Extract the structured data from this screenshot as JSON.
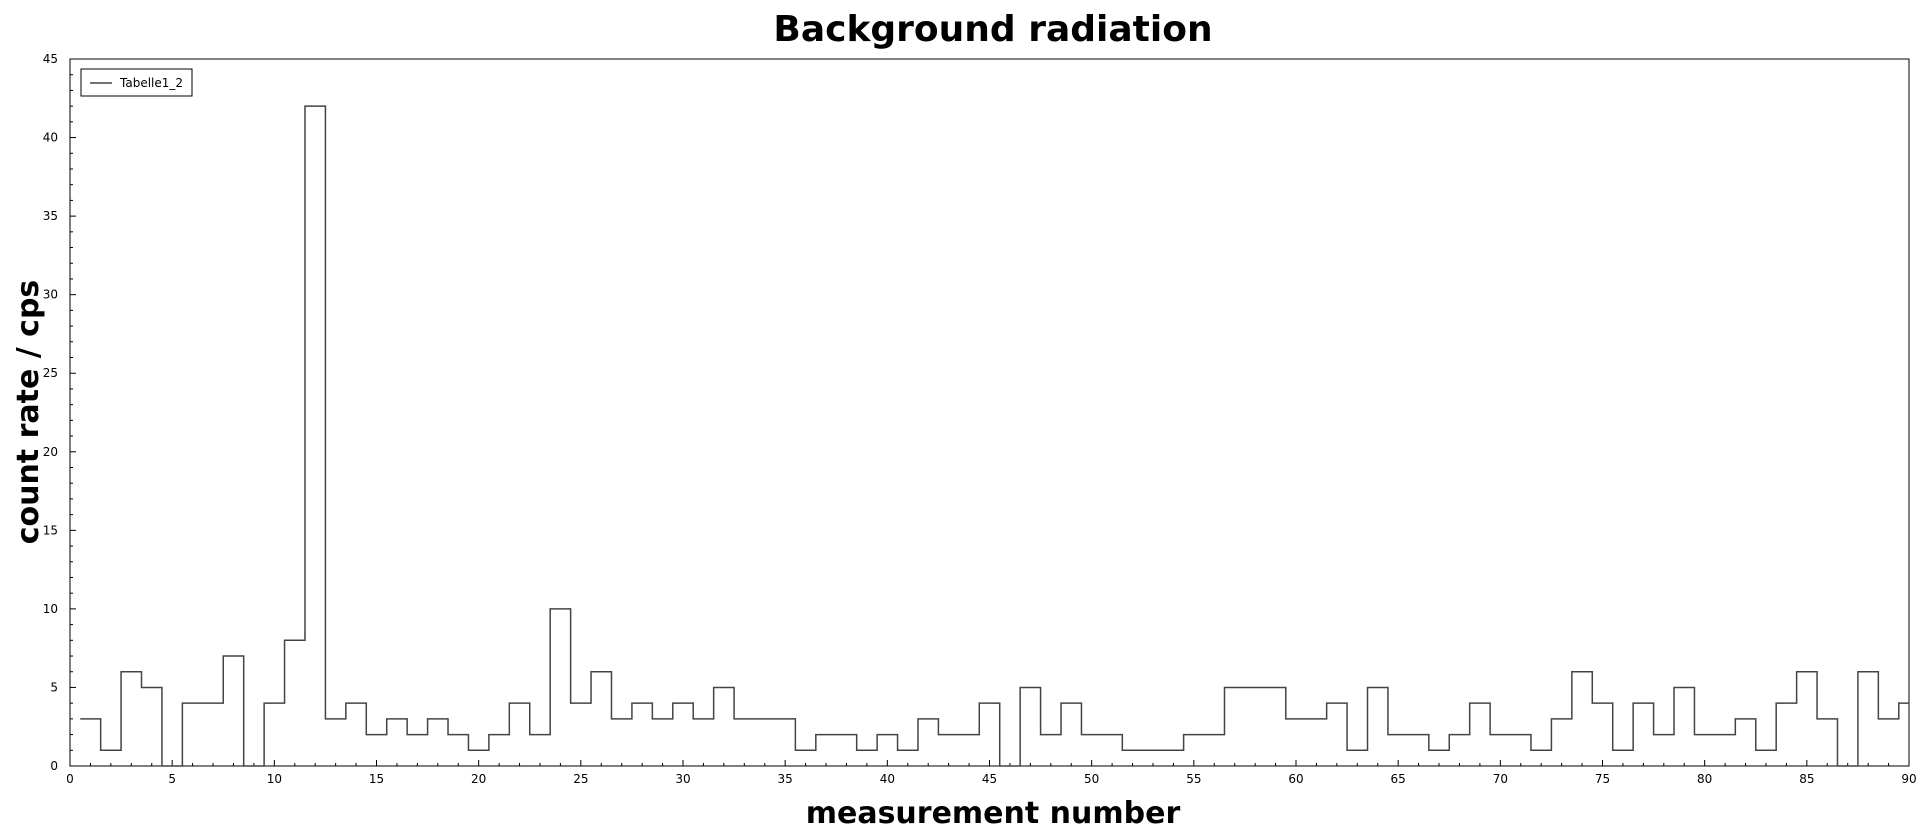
{
  "chart_data": {
    "type": "line",
    "step": true,
    "title": "Background radiation",
    "xlabel": "measurement number",
    "ylabel": "count rate / cps",
    "xlim": [
      0,
      90
    ],
    "ylim": [
      0,
      45
    ],
    "x_major_ticks": [
      0,
      5,
      10,
      15,
      20,
      25,
      30,
      35,
      40,
      45,
      50,
      55,
      60,
      65,
      70,
      75,
      80,
      85,
      90
    ],
    "y_major_ticks": [
      0,
      5,
      10,
      15,
      20,
      25,
      30,
      35,
      40,
      45
    ],
    "grid": false,
    "legend_position": "top-left",
    "series": [
      {
        "name": "Tabelle1_2",
        "color": "#444444",
        "x": [
          1,
          2,
          3,
          4,
          5,
          6,
          7,
          8,
          9,
          10,
          11,
          12,
          13,
          14,
          15,
          16,
          17,
          18,
          19,
          20,
          21,
          22,
          23,
          24,
          25,
          26,
          27,
          28,
          29,
          30,
          31,
          32,
          33,
          34,
          35,
          36,
          37,
          38,
          39,
          40,
          41,
          42,
          43,
          44,
          45,
          46,
          47,
          48,
          49,
          50,
          51,
          52,
          53,
          54,
          55,
          56,
          57,
          58,
          59,
          60,
          61,
          62,
          63,
          64,
          65,
          66,
          67,
          68,
          69,
          70,
          71,
          72,
          73,
          74,
          75,
          76,
          77,
          78,
          79,
          80,
          81,
          82,
          83,
          84,
          85,
          86,
          87,
          88,
          89,
          90
        ],
        "values": [
          3,
          1,
          6,
          5,
          0,
          4,
          4,
          7,
          0,
          4,
          8,
          42,
          3,
          4,
          2,
          3,
          2,
          3,
          2,
          1,
          2,
          4,
          2,
          10,
          4,
          6,
          3,
          4,
          3,
          4,
          3,
          5,
          3,
          3,
          3,
          1,
          2,
          2,
          1,
          2,
          1,
          3,
          2,
          2,
          4,
          0,
          5,
          2,
          4,
          2,
          2,
          1,
          1,
          1,
          2,
          2,
          5,
          5,
          5,
          3,
          3,
          4,
          1,
          5,
          2,
          2,
          1,
          2,
          4,
          2,
          2,
          1,
          3,
          6,
          4,
          1,
          4,
          2,
          5,
          2,
          2,
          3,
          1,
          4,
          6,
          3,
          0,
          6,
          3,
          4
        ]
      }
    ]
  }
}
